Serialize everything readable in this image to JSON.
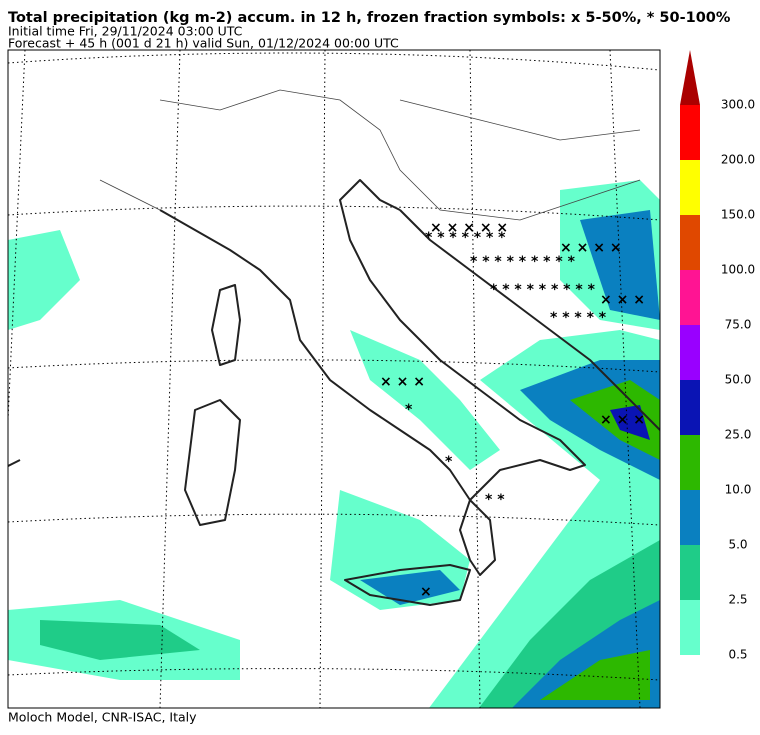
{
  "header": {
    "title": "Total precipitation (kg m-2) accum. in 12 h, frozen fraction symbols: x 5-50%, * 50-100%",
    "initial_time": "Initial time  Fri, 29/11/2024  03:00 UTC",
    "forecast": "Forecast  +  45 h  (001 d 21 h)  valid Sun, 01/12/2024 00:00 UTC"
  },
  "colorbar": {
    "labels": [
      "0.5",
      "2.5",
      "5.0",
      "10.0",
      "25.0",
      "50.0",
      "75.0",
      "100.0",
      "150.0",
      "200.0",
      "300.0"
    ],
    "colors": [
      "#66ffcc",
      "#1fcc88",
      "#0a80c0",
      "#2db800",
      "#0a14b4",
      "#9900ff",
      "#ff1493",
      "#e04800",
      "#ffff00",
      "#ff0000",
      "#aa0000"
    ]
  },
  "footer": "Moloch Model, CNR-ISAC, Italy"
}
